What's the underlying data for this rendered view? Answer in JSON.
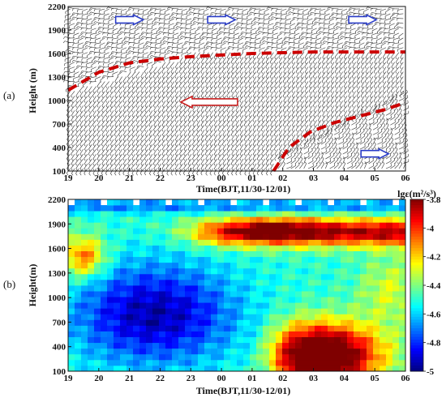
{
  "panel_labels": {
    "a": "(a)",
    "b": "(b)"
  },
  "chart_data": [
    {
      "type": "scatter",
      "subtype": "wind-barb field with annotated boundary",
      "xlabel": "Time(BJT,11/30-12/01)",
      "ylabel": "Height (m)",
      "x_ticks": [
        "19",
        "20",
        "21",
        "22",
        "23",
        "00",
        "01",
        "02",
        "03",
        "04",
        "05",
        "06"
      ],
      "y_ticks": [
        100,
        400,
        700,
        1000,
        1300,
        1600,
        1900,
        2200
      ],
      "ylim": [
        100,
        2200
      ],
      "series": [
        {
          "kind": "boundary",
          "color": "#cc0000",
          "style": "dashed",
          "x": [
            19.0,
            20.0,
            21.0,
            22.0,
            23.0,
            24.0,
            25.0,
            26.0,
            27.0,
            28.0,
            29.0,
            30.0
          ],
          "y": [
            1130,
            1360,
            1480,
            1530,
            1560,
            1580,
            1600,
            1610,
            1620,
            1620,
            1620,
            1620
          ]
        },
        {
          "kind": "boundary",
          "color": "#cc0000",
          "style": "dashed",
          "x": [
            25.7,
            26.2,
            26.9,
            27.7,
            28.5,
            29.3,
            29.9
          ],
          "y": [
            100,
            400,
            600,
            720,
            800,
            880,
            960
          ]
        }
      ],
      "arrows": [
        {
          "direction": "east",
          "color": "#2a3cc8",
          "x": 21.0,
          "y": 2030
        },
        {
          "direction": "east",
          "color": "#2a3cc8",
          "x": 24.0,
          "y": 2030
        },
        {
          "direction": "east",
          "color": "#2a3cc8",
          "x": 28.6,
          "y": 2030
        },
        {
          "direction": "west",
          "color": "#c81e1e",
          "x": 23.6,
          "y": 980
        },
        {
          "direction": "east",
          "color": "#2a3cc8",
          "x": 29.0,
          "y": 320
        }
      ]
    },
    {
      "type": "heatmap",
      "xlabel": "Time(BJT,11/30-12/01)",
      "ylabel": "Height(m)",
      "x_ticks": [
        "19",
        "20",
        "21",
        "22",
        "23",
        "00",
        "01",
        "02",
        "03",
        "04",
        "05",
        "06"
      ],
      "y_ticks": [
        100,
        400,
        700,
        1000,
        1300,
        1600,
        1900,
        2200
      ],
      "ylim": [
        100,
        2200
      ],
      "colorbar": {
        "label": "lgε(m²/s³)",
        "ticks": [
          -3.8,
          -4,
          -4.2,
          -4.4,
          -4.6,
          -4.8,
          -5
        ],
        "range": [
          -5,
          -3.8
        ],
        "colormap": "jet"
      },
      "description_of_field": "Low dissipation (~-4.9) in lower-left block 19-00 BJT below ~1500 m; high dissipation (~-3.8 to -4) band near 1700-1900 m after 23 BJT and in lower-right after 01 BJT below ~800 m."
    }
  ]
}
